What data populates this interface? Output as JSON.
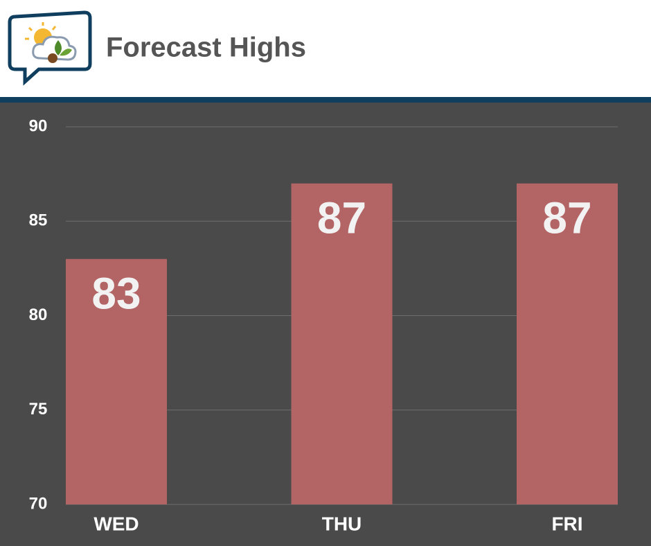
{
  "chart_data": {
    "type": "bar",
    "title": "Forecast Highs",
    "categories": [
      "WED",
      "THU",
      "FRI"
    ],
    "values": [
      83,
      87,
      87
    ],
    "color": "#b36465",
    "ylim": [
      70,
      90
    ],
    "yticks": [
      70,
      75,
      80,
      85,
      90
    ],
    "grid": true
  }
}
